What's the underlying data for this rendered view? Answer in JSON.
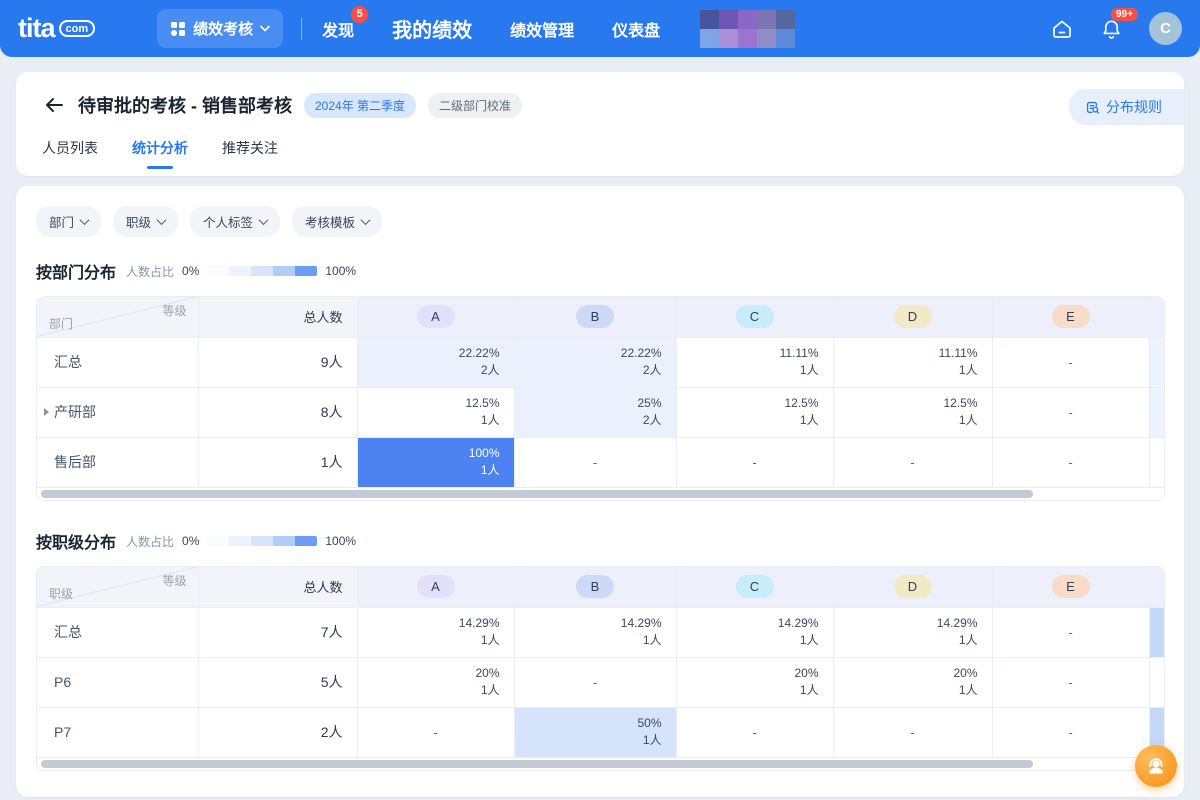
{
  "theme": {
    "navbar_bg": "#2878f0",
    "accent": "#2878f0",
    "badge_red": "#fa5044",
    "heat_100": "#4d82f2",
    "heat_50": "#d5e3fb",
    "heat_22": "#eaf1fd",
    "heat_low": "#ffffff",
    "cell_text": "#3c485c",
    "cell_text_on_strong": "#ffffff"
  },
  "navbar": {
    "logo": "tita",
    "logo_suffix": "com",
    "app_switcher_label": "绩效考核",
    "items": [
      {
        "label": "发现",
        "badge": "5",
        "active": false
      },
      {
        "label": "我的绩效",
        "active": true
      },
      {
        "label": "绩效管理",
        "active": false
      },
      {
        "label": "仪表盘",
        "active": false
      }
    ],
    "mosaic_colors": [
      "#46549c",
      "#6c56b6",
      "#8a68c6",
      "#7d76b2",
      "#54679e",
      "#7fa5e8",
      "#a98fd8",
      "#9b75d0",
      "#8f8cc9",
      "#6088d8"
    ],
    "notification_count": "99+",
    "avatar_initial": "C"
  },
  "header": {
    "title": "待审批的考核 - 销售部考核",
    "period_badge": "2024年 第二季度",
    "mode_badge": "二级部门校准",
    "rules_button_label": "分布规则",
    "tabs": [
      {
        "label": "人员列表",
        "active": false
      },
      {
        "label": "统计分析",
        "active": true
      },
      {
        "label": "推荐关注",
        "active": false
      }
    ]
  },
  "filters": [
    "部门",
    "职级",
    "个人标签",
    "考核模板"
  ],
  "legend": {
    "label": "人数占比",
    "min": "0%",
    "max": "100%",
    "colors": [
      "#f9fbff",
      "#edf3fd",
      "#d7e4fb",
      "#b2ccf8",
      "#6d9cf3"
    ]
  },
  "grade_columns": [
    {
      "label": "A",
      "color": "#e3e0fb"
    },
    {
      "label": "B",
      "color": "#ccd9f7"
    },
    {
      "label": "C",
      "color": "#c7ecfa"
    },
    {
      "label": "D",
      "color": "#f2e9c7"
    },
    {
      "label": "E",
      "color": "#f9dcc7"
    }
  ],
  "chart_data": [
    {
      "type": "table",
      "title": "按部门分布",
      "corner_top": "等级",
      "corner_bottom": "部门",
      "total_header": "总人数",
      "columns": [
        "A",
        "B",
        "C",
        "D",
        "E"
      ],
      "rows": [
        {
          "name": "汇总",
          "expandable": false,
          "total": "9人",
          "edge_tint": "#eef4fd",
          "cells": [
            {
              "pct": 22.22,
              "pct_label": "22.22%",
              "count": "2人"
            },
            {
              "pct": 22.22,
              "pct_label": "22.22%",
              "count": "2人"
            },
            {
              "pct": 11.11,
              "pct_label": "11.11%",
              "count": "1人"
            },
            {
              "pct": 11.11,
              "pct_label": "11.11%",
              "count": "1人"
            },
            null
          ]
        },
        {
          "name": "产研部",
          "expandable": true,
          "total": "8人",
          "edge_tint": "#eef4fd",
          "cells": [
            {
              "pct": 12.5,
              "pct_label": "12.5%",
              "count": "1人"
            },
            {
              "pct": 25,
              "pct_label": "25%",
              "count": "2人"
            },
            {
              "pct": 12.5,
              "pct_label": "12.5%",
              "count": "1人"
            },
            {
              "pct": 12.5,
              "pct_label": "12.5%",
              "count": "1人"
            },
            null
          ]
        },
        {
          "name": "售后部",
          "expandable": false,
          "total": "1人",
          "edge_tint": "#ffffff",
          "cells": [
            {
              "pct": 100,
              "pct_label": "100%",
              "count": "1人"
            },
            null,
            null,
            null,
            null
          ]
        }
      ]
    },
    {
      "type": "table",
      "title": "按职级分布",
      "corner_top": "等级",
      "corner_bottom": "职级",
      "total_header": "总人数",
      "columns": [
        "A",
        "B",
        "C",
        "D",
        "E"
      ],
      "rows": [
        {
          "name": "汇总",
          "expandable": false,
          "total": "7人",
          "edge_tint": "#c4d8f9",
          "cells": [
            {
              "pct": 14.29,
              "pct_label": "14.29%",
              "count": "1人"
            },
            {
              "pct": 14.29,
              "pct_label": "14.29%",
              "count": "1人"
            },
            {
              "pct": 14.29,
              "pct_label": "14.29%",
              "count": "1人"
            },
            {
              "pct": 14.29,
              "pct_label": "14.29%",
              "count": "1人"
            },
            null
          ]
        },
        {
          "name": "P6",
          "expandable": false,
          "total": "5人",
          "edge_tint": "#ffffff",
          "cells": [
            {
              "pct": 20,
              "pct_label": "20%",
              "count": "1人"
            },
            null,
            {
              "pct": 20,
              "pct_label": "20%",
              "count": "1人"
            },
            {
              "pct": 20,
              "pct_label": "20%",
              "count": "1人"
            },
            null
          ]
        },
        {
          "name": "P7",
          "expandable": false,
          "total": "2人",
          "edge_tint": "#c4d8f9",
          "cells": [
            null,
            {
              "pct": 50,
              "pct_label": "50%",
              "count": "1人"
            },
            null,
            null,
            null
          ]
        }
      ]
    }
  ]
}
